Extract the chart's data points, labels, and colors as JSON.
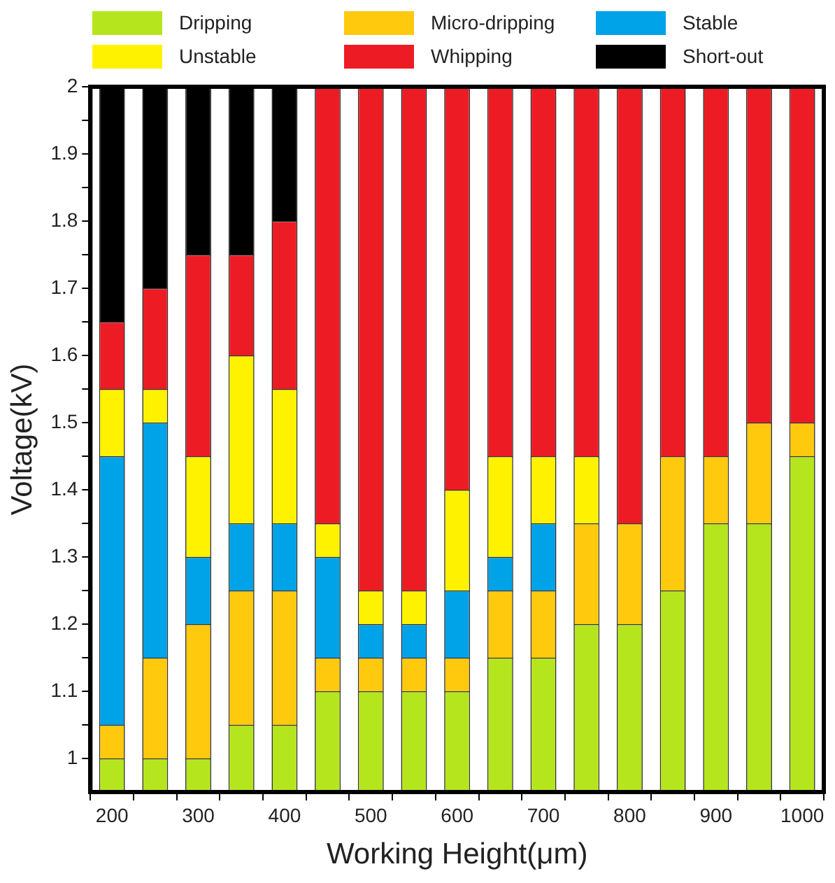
{
  "chart_data": {
    "type": "bar",
    "xlabel": "Working Height(μm)",
    "ylabel": "Voltage(kV)",
    "categories": [
      "200",
      null,
      "300",
      null,
      "400",
      null,
      "500",
      null,
      "600",
      null,
      "700",
      null,
      "800",
      null,
      "900",
      null,
      "1000"
    ],
    "ylim": [
      0.95,
      2
    ],
    "yticks": [
      1,
      {
        "value": 1.05,
        "label": null
      },
      1.1,
      {
        "value": 1.15,
        "label": null
      },
      1.2,
      {
        "value": 1.25,
        "label": null
      },
      1.3,
      {
        "value": 1.35,
        "label": null
      },
      1.4,
      {
        "value": 1.45,
        "label": null
      },
      1.5,
      {
        "value": 1.55,
        "label": null
      },
      1.6,
      {
        "value": 1.65,
        "label": null
      },
      1.7,
      {
        "value": 1.75,
        "label": null
      },
      1.8,
      {
        "value": 1.85,
        "label": null
      },
      1.9,
      {
        "value": 1.95,
        "label": null
      },
      2
    ],
    "grid": false,
    "legend": "top",
    "series": [
      {
        "name": "Dripping",
        "color": "#b5e61d",
        "base": [
          0.95,
          0.95,
          0.95,
          0.95,
          0.95,
          0.95,
          0.95,
          0.95,
          0.95,
          0.95,
          0.95,
          0.95,
          0.95,
          0.95,
          0.95,
          0.95,
          0.95
        ],
        "values": [
          0.05,
          0.05,
          0.05,
          0.1,
          0.1,
          0.15,
          0.15,
          0.15,
          0.15,
          0.2,
          0.2,
          0.25,
          0.25,
          0.3,
          0.4,
          0.4,
          0.5
        ]
      },
      {
        "name": "Micro-dripping",
        "color": "#ffc90e",
        "base": [
          1.0,
          1.0,
          1.0,
          1.05,
          1.05,
          1.1,
          1.1,
          1.1,
          1.1,
          1.15,
          1.15,
          1.2,
          1.2,
          1.25,
          1.35,
          1.35,
          1.45
        ],
        "values": [
          0.05,
          0.15,
          0.2,
          0.2,
          0.2,
          0.05,
          0.05,
          0.05,
          0.05,
          0.1,
          0.1,
          0.15,
          0.15,
          0.2,
          0.1,
          0.15,
          0.05
        ]
      },
      {
        "name": "Stable",
        "color": "#00a2e8",
        "base": [
          1.05,
          1.15,
          1.2,
          1.25,
          1.25,
          1.15,
          1.15,
          1.15,
          1.15,
          1.25,
          1.25,
          null,
          null,
          null,
          null,
          null,
          null
        ],
        "values": [
          0.4,
          0.35,
          0.1,
          0.1,
          0.1,
          0.15,
          0.05,
          0.05,
          0.1,
          0.05,
          0.1,
          null,
          null,
          null,
          null,
          null,
          null
        ]
      },
      {
        "name": "Unstable",
        "color": "#fff200",
        "base": [
          1.45,
          1.5,
          1.3,
          1.35,
          1.35,
          1.3,
          1.2,
          1.2,
          1.25,
          1.3,
          1.35,
          1.35,
          null,
          null,
          null,
          null,
          null
        ],
        "values": [
          0.1,
          0.05,
          0.15,
          0.25,
          0.2,
          0.05,
          0.05,
          0.05,
          0.15,
          0.15,
          0.1,
          0.1,
          null,
          null,
          null,
          null,
          null
        ]
      },
      {
        "name": "Whipping",
        "color": "#ed1c24",
        "base": [
          1.55,
          1.55,
          1.45,
          1.6,
          1.55,
          1.35,
          1.25,
          1.25,
          1.4,
          1.45,
          1.45,
          1.45,
          1.35,
          1.45,
          1.45,
          1.5,
          1.5
        ],
        "values": [
          0.1,
          0.15,
          0.3,
          0.15,
          0.25,
          0.65,
          0.75,
          0.75,
          0.6,
          0.55,
          0.55,
          0.55,
          0.65,
          0.55,
          0.55,
          0.5,
          0.5
        ]
      },
      {
        "name": "Short-out",
        "color": "#000000",
        "base": [
          1.65,
          1.7,
          1.75,
          1.75,
          1.8,
          null,
          null,
          null,
          null,
          null,
          null,
          null,
          null,
          null,
          null,
          null,
          null
        ],
        "values": [
          0.35,
          0.3,
          0.25,
          0.25,
          0.2,
          null,
          null,
          null,
          null,
          null,
          null,
          null,
          null,
          null,
          null,
          null,
          null
        ]
      }
    ]
  }
}
